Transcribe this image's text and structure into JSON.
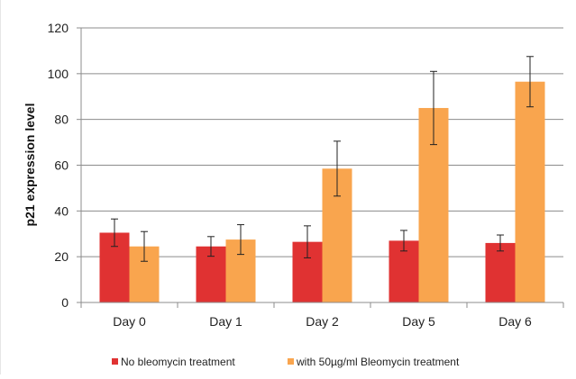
{
  "chart_data": {
    "type": "bar",
    "title": "",
    "xlabel": "",
    "ylabel": "p21 expression level",
    "categories": [
      "Day 0",
      "Day 1",
      "Day 2",
      "Day 5",
      "Day 6"
    ],
    "ylim": [
      0,
      120
    ],
    "yticks": [
      0,
      20,
      40,
      60,
      80,
      100,
      120
    ],
    "grid": true,
    "legend_position": "bottom",
    "series": [
      {
        "name": "No bleomycin treatment",
        "color": "#e03232",
        "values": [
          30.5,
          24.5,
          26.5,
          27,
          26
        ],
        "error": [
          6,
          4.3,
          7,
          4.5,
          3.5
        ]
      },
      {
        "name": "with 50µg/ml Bleomycin treatment",
        "color": "#f9a54e",
        "values": [
          24.5,
          27.5,
          58.5,
          85,
          96.5
        ],
        "error": [
          6.5,
          6.5,
          12,
          16,
          11
        ]
      }
    ]
  }
}
